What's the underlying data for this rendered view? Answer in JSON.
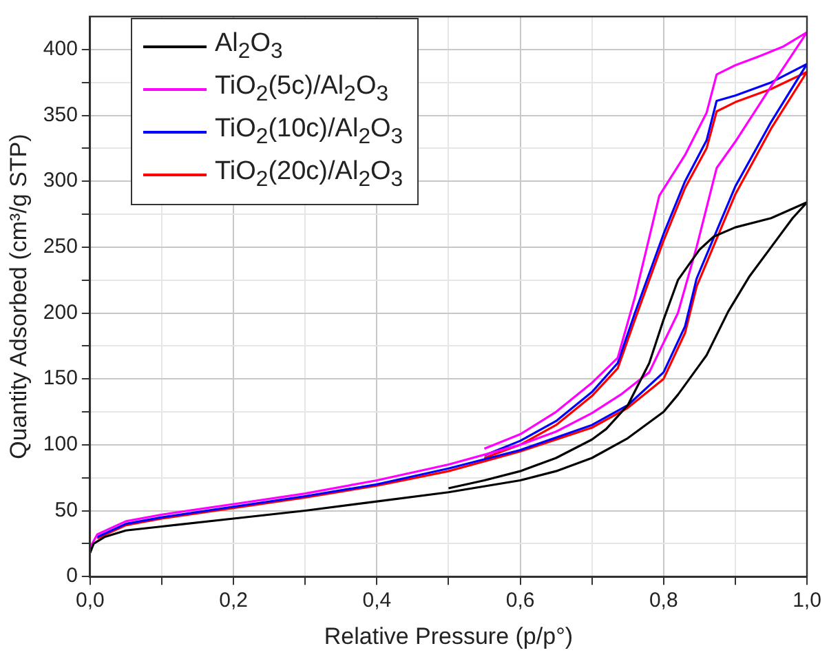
{
  "chart_data": {
    "type": "line",
    "xlabel": "Relative Pressure (p/p°)",
    "ylabel": "Quantity Adsorbed (cm³/g STP)",
    "xlim": [
      0,
      1
    ],
    "ylim": [
      0,
      425
    ],
    "xticks": [
      {
        "value": 0,
        "label": "0,0"
      },
      {
        "value": 0.1,
        "label": null
      },
      {
        "value": 0.2,
        "label": "0,2"
      },
      {
        "value": 0.3,
        "label": null
      },
      {
        "value": 0.4,
        "label": "0,4"
      },
      {
        "value": 0.5,
        "label": null
      },
      {
        "value": 0.6,
        "label": "0,6"
      },
      {
        "value": 0.7,
        "label": null
      },
      {
        "value": 0.8,
        "label": "0,8"
      },
      {
        "value": 0.9,
        "label": null
      },
      {
        "value": 1,
        "label": "1,0"
      }
    ],
    "yticks": [
      0,
      {
        "value": 25,
        "label": null
      },
      50,
      {
        "value": 75,
        "label": null
      },
      100,
      {
        "value": 125,
        "label": null
      },
      150,
      {
        "value": 175,
        "label": null
      },
      200,
      {
        "value": 225,
        "label": null
      },
      250,
      {
        "value": 275,
        "label": null
      },
      300,
      {
        "value": 325,
        "label": null
      },
      350,
      {
        "value": 375,
        "label": null
      },
      400
    ],
    "grid": true,
    "legend": "top left",
    "marker": "none",
    "line_style": "solid",
    "series": [
      {
        "name": "Al$_{2}$O$_{3}$",
        "color": "#000000",
        "x": [
          0,
          0.005,
          0.02,
          0.05,
          0.1,
          0.2,
          0.3,
          0.4,
          0.5,
          0.6,
          0.65,
          0.7,
          0.75,
          0.8,
          0.82,
          0.86,
          0.89,
          0.92,
          0.95,
          0.98,
          1,
          0.95,
          0.9,
          0.87,
          0.85,
          0.82,
          0.8,
          0.78,
          0.75,
          0.72,
          0.7,
          0.65,
          0.6,
          0.55,
          0.5
        ],
        "values": [
          18,
          25,
          30,
          35,
          38,
          44,
          50,
          57,
          64,
          73,
          80,
          90,
          105,
          125,
          138,
          168,
          201,
          228,
          250,
          272,
          284,
          272,
          265,
          258,
          248,
          225,
          195,
          162,
          130,
          112,
          104,
          90,
          80,
          73,
          67
        ]
      },
      {
        "name": "TiO$_{2}$(5c)/Al$_{2}$O$_{3}$",
        "color": "#ff00ff",
        "x": [
          0,
          0.01,
          0.05,
          0.1,
          0.2,
          0.3,
          0.4,
          0.5,
          0.6,
          0.65,
          0.7,
          0.74,
          0.78,
          0.82,
          0.846,
          0.874,
          0.9,
          0.95,
          1,
          0.966,
          0.934,
          0.9,
          0.874,
          0.86,
          0.83,
          0.794,
          0.76,
          0.736,
          0.7,
          0.65,
          0.6,
          0.55
        ],
        "values": [
          22,
          32,
          42,
          47,
          55,
          63,
          73,
          85,
          100,
          110,
          124,
          138,
          155,
          200,
          250,
          310,
          330,
          372,
          413,
          402,
          395,
          388,
          381,
          352,
          320,
          289,
          212,
          166,
          147,
          125,
          108,
          97
        ]
      },
      {
        "name": "TiO$_{2}$(10c)/Al$_{2}$O$_{3}$",
        "color": "#0000ff",
        "x": [
          0.01,
          0.05,
          0.1,
          0.2,
          0.3,
          0.4,
          0.5,
          0.6,
          0.7,
          0.75,
          0.8,
          0.83,
          0.846,
          0.9,
          0.95,
          1,
          0.95,
          0.9,
          0.874,
          0.86,
          0.83,
          0.8,
          0.76,
          0.736,
          0.7,
          0.65,
          0.6,
          0.55
        ],
        "values": [
          30,
          40,
          45,
          53,
          61,
          70,
          82,
          96,
          115,
          130,
          155,
          190,
          226,
          296,
          345,
          389,
          375,
          365,
          361,
          331,
          300,
          260,
          200,
          162,
          140,
          118,
          103,
          92
        ]
      },
      {
        "name": "TiO$_{2}$(20c)/Al$_{2}$O$_{3}$",
        "color": "#ff0000",
        "x": [
          0.01,
          0.05,
          0.1,
          0.2,
          0.3,
          0.4,
          0.5,
          0.6,
          0.7,
          0.75,
          0.8,
          0.83,
          0.846,
          0.9,
          0.95,
          1,
          0.95,
          0.9,
          0.874,
          0.86,
          0.83,
          0.8,
          0.76,
          0.736,
          0.7,
          0.65,
          0.6,
          0.55
        ],
        "values": [
          29,
          39,
          44,
          52,
          60,
          69,
          80,
          95,
          113,
          128,
          150,
          185,
          220,
          290,
          340,
          383,
          370,
          360,
          353,
          325,
          295,
          255,
          195,
          158,
          137,
          115,
          100,
          90
        ]
      }
    ]
  }
}
